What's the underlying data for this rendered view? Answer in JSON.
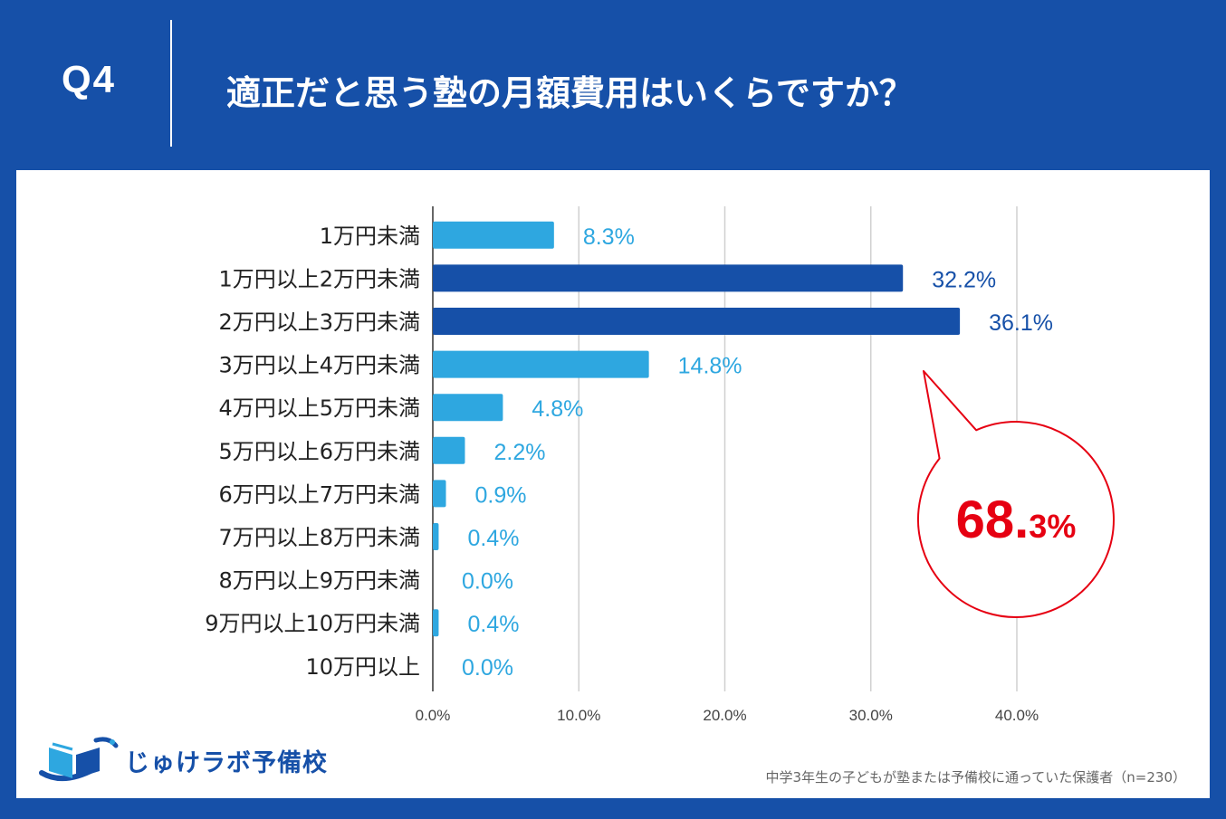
{
  "header": {
    "q_label": "Q4",
    "question": "適正だと思う塾の月額費用はいくらですか？"
  },
  "colors": {
    "background": "#1650a8",
    "bar_light": "#2ea7e0",
    "bar_dark": "#1650a8",
    "callout": "#e60012",
    "grid": "#d0d0d0"
  },
  "chart_data": {
    "type": "bar",
    "orientation": "horizontal",
    "title": "適正だと思う塾の月額費用はいくらですか？",
    "categories": [
      "1万円未満",
      "1万円以上2万円未満",
      "2万円以上3万円未満",
      "3万円以上4万円未満",
      "4万円以上5万円未満",
      "5万円以上6万円未満",
      "6万円以上7万円未満",
      "7万円以上8万円未満",
      "8万円以上9万円未満",
      "9万円以上10万円未満",
      "10万円以上"
    ],
    "values": [
      8.3,
      32.2,
      36.1,
      14.8,
      4.8,
      2.2,
      0.9,
      0.4,
      0.0,
      0.4,
      0.0
    ],
    "value_labels": [
      "8.3%",
      "32.2%",
      "36.1%",
      "14.8%",
      "4.8%",
      "2.2%",
      "0.9%",
      "0.4%",
      "0.0%",
      "0.4%",
      "0.0%"
    ],
    "highlighted": [
      false,
      true,
      true,
      false,
      false,
      false,
      false,
      false,
      false,
      false,
      false
    ],
    "xlim": [
      0,
      40
    ],
    "x_ticks": [
      0,
      10,
      20,
      30,
      40
    ],
    "x_tick_labels": [
      "0.0%",
      "10.0%",
      "20.0%",
      "30.0%",
      "40.0%"
    ],
    "grid": true,
    "callout": {
      "value_main": "68.",
      "value_small": "3%"
    }
  },
  "footer": {
    "logo_text": "じゅけラボ予備校",
    "note": "中学3年生の子どもが塾または予備校に通っていた保護者（n=230）"
  }
}
